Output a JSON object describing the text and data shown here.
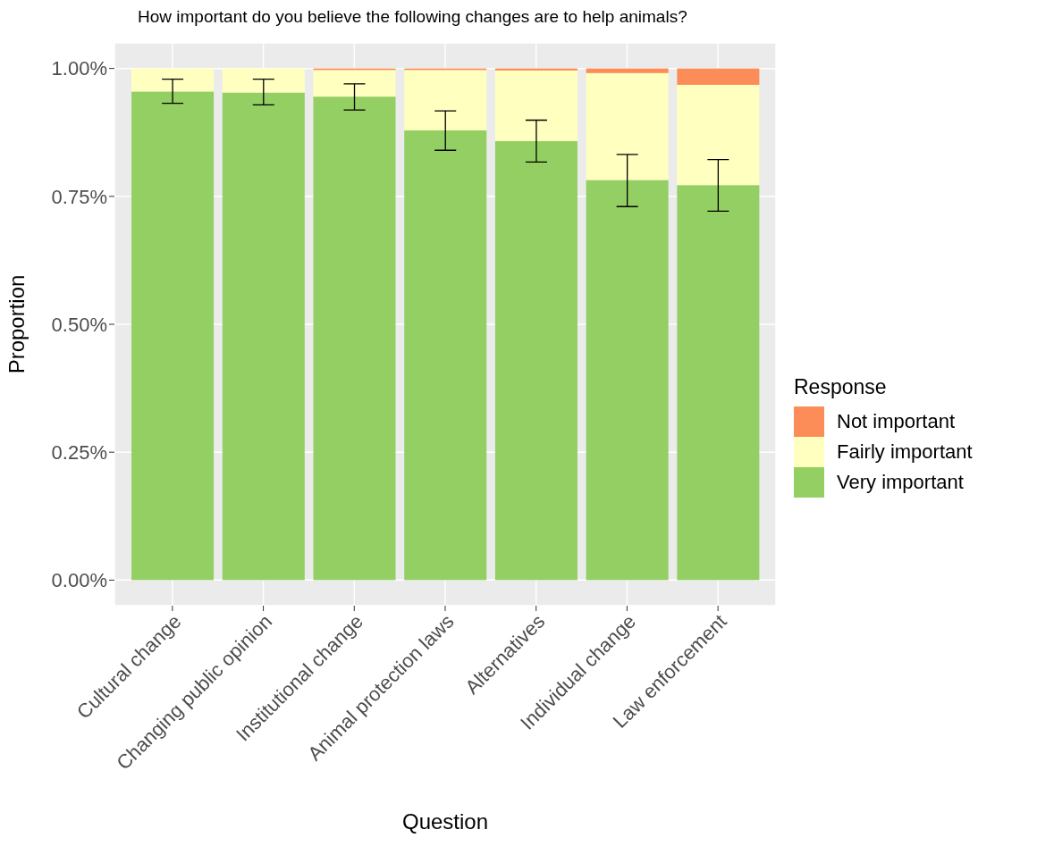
{
  "chart_data": {
    "type": "bar",
    "title": "How important do you believe the following changes are to help animals?",
    "xlabel": "Question",
    "ylabel": "Proportion",
    "legend_title": "Response",
    "categories": [
      "Cultural change",
      "Changing public opinion",
      "Institutional change",
      "Animal protection laws",
      "Alternatives",
      "Individual change",
      "Law enforcement"
    ],
    "stacked": true,
    "grid": true,
    "legend": "right",
    "ylim": [
      -0.05,
      1.05
    ],
    "yticks": [
      {
        "value": 0,
        "label": "0.00%"
      },
      {
        "value": 0.25,
        "label": "0.25%"
      },
      {
        "value": 0.5,
        "label": "0.50%"
      },
      {
        "value": 0.75,
        "label": "0.75%"
      },
      {
        "value": 1,
        "label": "1.00%"
      }
    ],
    "series": [
      {
        "name": "Very important",
        "color": "#93cf62",
        "values": [
          0.955,
          0.953,
          0.945,
          0.879,
          0.858,
          0.782,
          0.772
        ],
        "errors": [
          [
            0.932,
            0.979
          ],
          [
            0.929,
            0.979
          ],
          [
            0.919,
            0.97
          ],
          [
            0.84,
            0.917
          ],
          [
            0.817,
            0.899
          ],
          [
            0.73,
            0.832
          ],
          [
            0.721,
            0.822
          ]
        ]
      },
      {
        "name": "Fairly important",
        "color": "#ffffbf",
        "values": [
          0.045,
          0.047,
          0.052,
          0.118,
          0.138,
          0.209,
          0.196
        ]
      },
      {
        "name": "Not important",
        "color": "#fc8d59",
        "values": [
          0,
          0,
          0.003,
          0.003,
          0.004,
          0.009,
          0.032
        ]
      }
    ]
  }
}
